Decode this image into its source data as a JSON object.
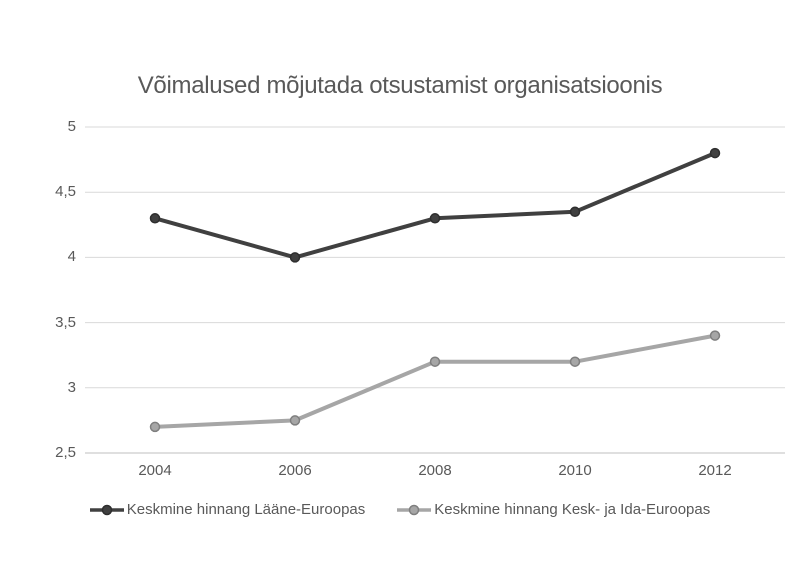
{
  "title": "Võimalused mõjutada otsustamist organisatsioonis",
  "colors": {
    "title_text": "#595959",
    "axis_text": "#595959",
    "gridline": "#d9d9d9",
    "axis_line": "#bfbfbf",
    "background": "#ffffff",
    "series_dark": "#404040",
    "series_light": "#a6a6a6"
  },
  "chart_data": {
    "type": "line",
    "title": "Võimalused mõjutada otsustamist organisatsioonis",
    "categories": [
      "2004",
      "2006",
      "2008",
      "2010",
      "2012"
    ],
    "series": [
      {
        "name": "Keskmine hinnang Lääne-Euroopas",
        "values": [
          4.3,
          4.0,
          4.3,
          4.35,
          4.8
        ],
        "color": "#404040",
        "marker_fill": "#404040",
        "marker_stroke": "#2e2e2e"
      },
      {
        "name": "Keskmine hinnang Kesk- ja Ida-Euroopas",
        "values": [
          2.7,
          2.75,
          3.2,
          3.2,
          3.4
        ],
        "color": "#a6a6a6",
        "marker_fill": "#a6a6a6",
        "marker_stroke": "#7f7f7f"
      }
    ],
    "xlabel": "",
    "ylabel": "",
    "ylim": [
      2.5,
      5
    ],
    "ytick_step": 0.5,
    "ytick_labels_top_to_bottom": [
      "5",
      "4,5",
      "4",
      "3,5",
      "3",
      "2,5"
    ],
    "grid": true,
    "legend_position": "bottom"
  }
}
